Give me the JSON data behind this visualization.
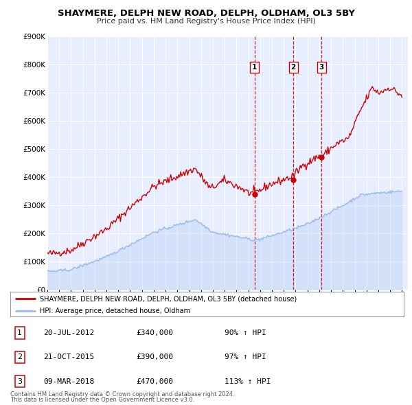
{
  "title": "SHAYMERE, DELPH NEW ROAD, DELPH, OLDHAM, OL3 5BY",
  "subtitle": "Price paid vs. HM Land Registry's House Price Index (HPI)",
  "ylim": [
    0,
    900000
  ],
  "yticks": [
    0,
    100000,
    200000,
    300000,
    400000,
    500000,
    600000,
    700000,
    800000,
    900000
  ],
  "ytick_labels": [
    "£0",
    "£100K",
    "£200K",
    "£300K",
    "£400K",
    "£500K",
    "£600K",
    "£700K",
    "£800K",
    "£900K"
  ],
  "plot_bg_color": "#e8eeff",
  "grid_color": "#ffffff",
  "red_line_color": "#cc0000",
  "blue_line_color": "#99bbee",
  "sale_marker_color": "#cc0000",
  "dashed_line_color": "#cc0000",
  "sale_points": [
    {
      "date_num": 2012.54,
      "value": 340000,
      "label": "1"
    },
    {
      "date_num": 2015.81,
      "value": 390000,
      "label": "2"
    },
    {
      "date_num": 2018.19,
      "value": 470000,
      "label": "3"
    }
  ],
  "table_entries": [
    {
      "num": "1",
      "date": "20-JUL-2012",
      "price": "£340,000",
      "hpi": "90% ↑ HPI"
    },
    {
      "num": "2",
      "date": "21-OCT-2015",
      "price": "£390,000",
      "hpi": "97% ↑ HPI"
    },
    {
      "num": "3",
      "date": "09-MAR-2018",
      "price": "£470,000",
      "hpi": "113% ↑ HPI"
    }
  ],
  "footnote1": "Contains HM Land Registry data © Crown copyright and database right 2024.",
  "footnote2": "This data is licensed under the Open Government Licence v3.0.",
  "legend_line1": "SHAYMERE, DELPH NEW ROAD, DELPH, OLDHAM, OL3 5BY (detached house)",
  "legend_line2": "HPI: Average price, detached house, Oldham",
  "xmin": 1995,
  "xmax": 2025.5
}
